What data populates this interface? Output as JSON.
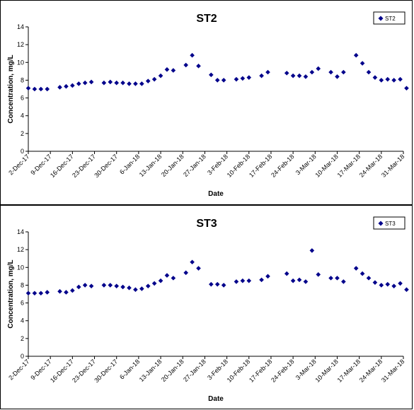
{
  "chart_data": [
    {
      "type": "scatter",
      "title": "ST2",
      "xlabel": "Date",
      "ylabel": "Concentration, mg/L",
      "ylim": [
        0,
        14
      ],
      "yticks": [
        "0",
        "2",
        "4",
        "6",
        "8",
        "10",
        "12",
        "14"
      ],
      "xlim": [
        "2017-12-02",
        "2018-03-31"
      ],
      "xticks": [
        "2-Dec-17",
        "9-Dec-17",
        "16-Dec-17",
        "23-Dec-17",
        "30-Dec-17",
        "6-Jan-18",
        "13-Jan-18",
        "20-Jan-18",
        "27-Jan-18",
        "3-Feb-18",
        "10-Feb-18",
        "17-Feb-18",
        "24-Feb-18",
        "3-Mar-18",
        "10-Mar-18",
        "17-Mar-18",
        "24-Mar-18",
        "31-Mar-18"
      ],
      "grid": false,
      "legend_position": "top-right",
      "marker_color": "#00008B",
      "series": [
        {
          "name": "ST2",
          "x": [
            "2017-12-02",
            "2017-12-04",
            "2017-12-06",
            "2017-12-08",
            "2017-12-12",
            "2017-12-14",
            "2017-12-16",
            "2017-12-18",
            "2017-12-20",
            "2017-12-22",
            "2017-12-26",
            "2017-12-28",
            "2017-12-30",
            "2018-01-01",
            "2018-01-03",
            "2018-01-05",
            "2018-01-07",
            "2018-01-09",
            "2018-01-11",
            "2018-01-13",
            "2018-01-15",
            "2018-01-17",
            "2018-01-21",
            "2018-01-23",
            "2018-01-25",
            "2018-01-29",
            "2018-01-31",
            "2018-02-02",
            "2018-02-06",
            "2018-02-08",
            "2018-02-10",
            "2018-02-14",
            "2018-02-16",
            "2018-02-22",
            "2018-02-24",
            "2018-02-26",
            "2018-02-28",
            "2018-03-02",
            "2018-03-04",
            "2018-03-08",
            "2018-03-10",
            "2018-03-12",
            "2018-03-16",
            "2018-03-18",
            "2018-03-20",
            "2018-03-22",
            "2018-03-24",
            "2018-03-26",
            "2018-03-28",
            "2018-03-30",
            "2018-04-01"
          ],
          "y": [
            7.1,
            7.0,
            7.0,
            7.0,
            7.2,
            7.3,
            7.4,
            7.6,
            7.7,
            7.8,
            7.7,
            7.8,
            7.7,
            7.7,
            7.6,
            7.6,
            7.6,
            7.9,
            8.1,
            8.5,
            9.2,
            9.1,
            9.7,
            10.8,
            9.6,
            8.6,
            8.0,
            8.0,
            8.1,
            8.2,
            8.3,
            8.5,
            8.9,
            8.8,
            8.5,
            8.5,
            8.4,
            8.9,
            9.3,
            8.9,
            8.4,
            8.9,
            10.8,
            9.9,
            8.9,
            8.3,
            8.0,
            8.1,
            8.0,
            8.1,
            7.1
          ]
        }
      ]
    },
    {
      "type": "scatter",
      "title": "ST3",
      "xlabel": "Date",
      "ylabel": "Concentration, mg/L",
      "ylim": [
        0,
        14
      ],
      "yticks": [
        "0",
        "2",
        "4",
        "6",
        "8",
        "10",
        "12",
        "14"
      ],
      "xlim": [
        "2017-12-02",
        "2018-03-31"
      ],
      "xticks": [
        "2-Dec-17",
        "9-Dec-17",
        "16-Dec-17",
        "23-Dec-17",
        "30-Dec-17",
        "6-Jan-18",
        "13-Jan-18",
        "20-Jan-18",
        "27-Jan-18",
        "3-Feb-18",
        "10-Feb-18",
        "17-Feb-18",
        "24-Feb-18",
        "3-Mar-18",
        "10-Mar-18",
        "17-Mar-18",
        "24-Mar-18",
        "31-Mar-18"
      ],
      "grid": false,
      "legend_position": "top-right",
      "marker_color": "#00008B",
      "series": [
        {
          "name": "ST3",
          "x": [
            "2017-12-02",
            "2017-12-04",
            "2017-12-06",
            "2017-12-08",
            "2017-12-12",
            "2017-12-14",
            "2017-12-16",
            "2017-12-18",
            "2017-12-20",
            "2017-12-22",
            "2017-12-26",
            "2017-12-28",
            "2017-12-30",
            "2018-01-01",
            "2018-01-03",
            "2018-01-05",
            "2018-01-07",
            "2018-01-09",
            "2018-01-11",
            "2018-01-13",
            "2018-01-15",
            "2018-01-17",
            "2018-01-21",
            "2018-01-23",
            "2018-01-25",
            "2018-01-29",
            "2018-01-31",
            "2018-02-02",
            "2018-02-06",
            "2018-02-08",
            "2018-02-10",
            "2018-02-14",
            "2018-02-16",
            "2018-02-22",
            "2018-02-24",
            "2018-02-26",
            "2018-02-28",
            "2018-03-02",
            "2018-03-04",
            "2018-03-08",
            "2018-03-10",
            "2018-03-12",
            "2018-03-16",
            "2018-03-18",
            "2018-03-20",
            "2018-03-22",
            "2018-03-24",
            "2018-03-26",
            "2018-03-28",
            "2018-03-30",
            "2018-04-01"
          ],
          "y": [
            7.1,
            7.1,
            7.1,
            7.2,
            7.3,
            7.2,
            7.4,
            7.8,
            8.0,
            7.9,
            8.0,
            8.0,
            7.9,
            7.8,
            7.7,
            7.5,
            7.6,
            7.9,
            8.2,
            8.5,
            9.1,
            8.8,
            9.4,
            10.6,
            9.9,
            8.1,
            8.1,
            8.0,
            8.4,
            8.5,
            8.5,
            8.6,
            9.0,
            9.3,
            8.5,
            8.6,
            8.4,
            11.9,
            9.2,
            8.8,
            8.8,
            8.4,
            9.9,
            9.3,
            8.8,
            8.3,
            8.0,
            8.1,
            7.9,
            8.2,
            7.5
          ]
        }
      ]
    }
  ]
}
